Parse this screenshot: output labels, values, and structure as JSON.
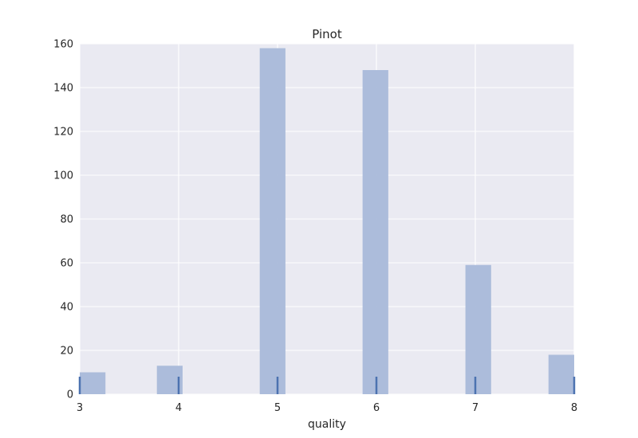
{
  "chart_data": {
    "type": "bar",
    "title": "Pinot",
    "xlabel": "quality",
    "ylabel": "",
    "xlim": [
      3,
      8
    ],
    "ylim": [
      0,
      160
    ],
    "x_ticks": [
      3,
      4,
      5,
      6,
      7,
      8
    ],
    "y_ticks": [
      0,
      20,
      40,
      60,
      80,
      100,
      120,
      140,
      160
    ],
    "bin_width": 0.26,
    "bins": [
      {
        "start": 3.0,
        "end": 3.26,
        "count": 10
      },
      {
        "start": 3.78,
        "end": 4.04,
        "count": 13
      },
      {
        "start": 4.82,
        "end": 5.08,
        "count": 158
      },
      {
        "start": 5.86,
        "end": 6.12,
        "count": 148
      },
      {
        "start": 6.9,
        "end": 7.16,
        "count": 59
      },
      {
        "start": 7.74,
        "end": 8.0,
        "count": 18
      }
    ],
    "rug": [
      3,
      4,
      5,
      6,
      7,
      8
    ],
    "grid": true,
    "colors": {
      "background": "#eaeaf2",
      "grid": "#ffffff",
      "bar": "#a9b9d9",
      "rug": "#4c72b0"
    }
  }
}
